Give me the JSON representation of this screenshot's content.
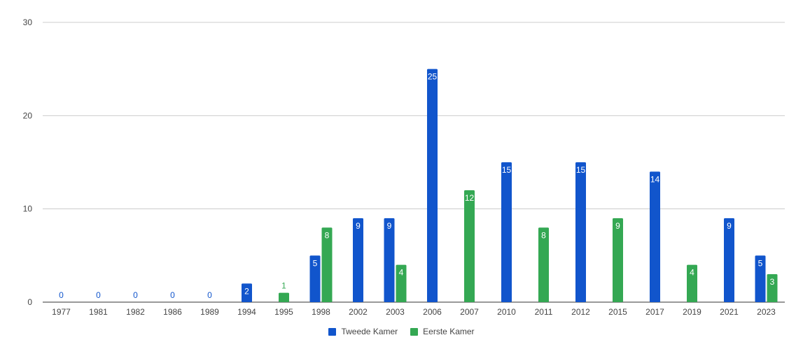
{
  "chart_data": {
    "type": "bar",
    "categories": [
      "1977",
      "1981",
      "1982",
      "1986",
      "1989",
      "1994",
      "1995",
      "1998",
      "2002",
      "2003",
      "2006",
      "2007",
      "2010",
      "2011",
      "2012",
      "2015",
      "2017",
      "2019",
      "2021",
      "2023"
    ],
    "series": [
      {
        "name": "Tweede Kamer",
        "color": "#1155cc",
        "values": [
          0,
          0,
          0,
          0,
          0,
          2,
          null,
          5,
          9,
          9,
          25,
          null,
          15,
          null,
          15,
          null,
          14,
          null,
          9,
          5
        ]
      },
      {
        "name": "Eerste Kamer",
        "color": "#34a853",
        "values": [
          null,
          null,
          null,
          null,
          null,
          null,
          1,
          8,
          null,
          4,
          null,
          12,
          null,
          8,
          null,
          9,
          null,
          4,
          null,
          3
        ]
      }
    ],
    "ylim": [
      0,
      30
    ],
    "yticks": [
      0,
      10,
      20,
      30
    ],
    "grid": true,
    "legend": "bottom"
  }
}
